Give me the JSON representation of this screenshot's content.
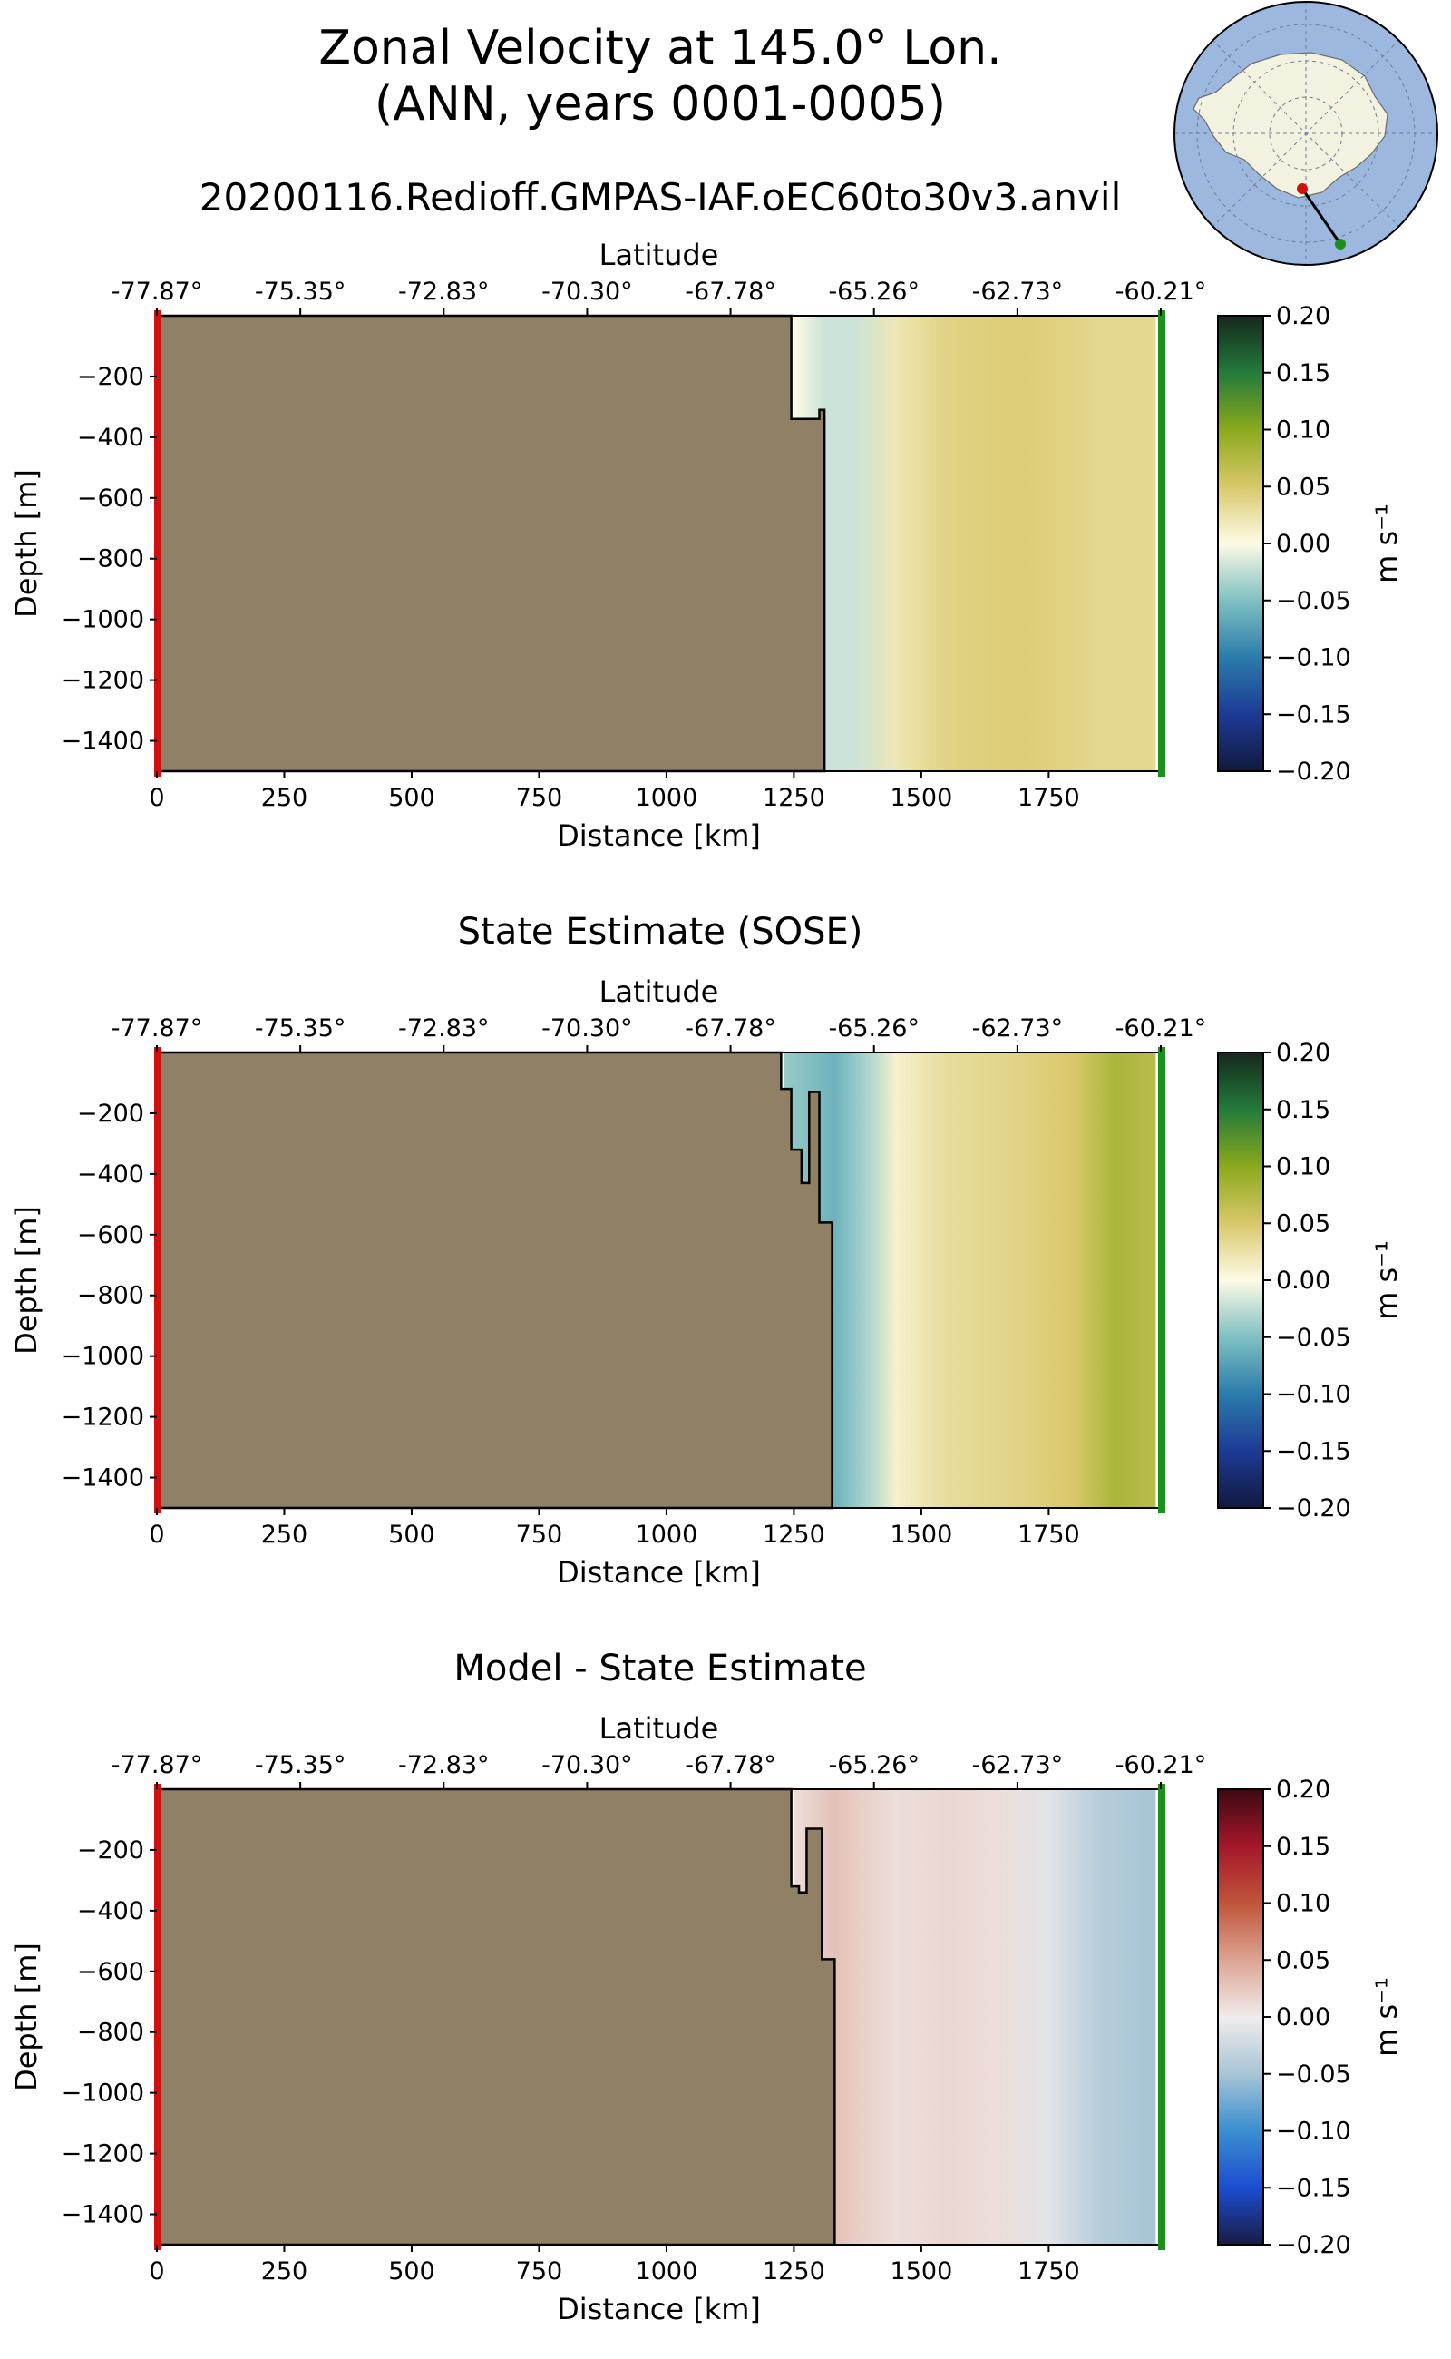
{
  "figure": {
    "title_line1": "Zonal Velocity at 145.0° Lon.",
    "title_line2": "(ANN, years 0001-0005)",
    "subtitle": "20200116.Redioff.GMPAS-IAF.oEC60to30v3.anvil",
    "inset_map": "antarctica-polar-stereographic",
    "colors": {
      "land": "#8f8066",
      "ocean_map": "#9db8df",
      "continent_map": "#f3f1df",
      "start_marker": "#d11010",
      "end_marker": "#1c8f1c"
    }
  },
  "chart_data": [
    {
      "type": "heatmap",
      "title": "",
      "xlabel": "Distance [km]",
      "ylabel": "Depth [m]",
      "top_axis_label": "Latitude",
      "top_ticks": [
        "-77.87°",
        "-75.35°",
        "-72.83°",
        "-70.30°",
        "-67.78°",
        "-65.26°",
        "-62.73°",
        "-60.21°"
      ],
      "x_ticks": [
        "0",
        "250",
        "500",
        "750",
        "1000",
        "1250",
        "1500",
        "1750"
      ],
      "y_ticks": [
        "−200",
        "−400",
        "−600",
        "−800",
        "−1000",
        "−1200",
        "−1400"
      ],
      "xlim": [
        0,
        1970
      ],
      "ylim": [
        -1500,
        0
      ],
      "colorbar": {
        "label": "m s⁻¹",
        "colormap": "delta",
        "ticks": [
          "0.20",
          "0.15",
          "0.10",
          "0.05",
          "0.00",
          "−0.05",
          "−0.10",
          "−0.15",
          "−0.20"
        ],
        "range": [
          -0.2,
          0.2
        ]
      },
      "bathymetry": [
        [
          1245,
          0
        ],
        [
          1245,
          -340
        ],
        [
          1300,
          -340
        ],
        [
          1300,
          -310
        ],
        [
          1310,
          -310
        ],
        [
          1310,
          -1500
        ]
      ],
      "velocity_profile": {
        "x": [
          1250,
          1310,
          1370,
          1450,
          1550,
          1700,
          1850,
          1960
        ],
        "v": [
          0.0,
          -0.02,
          -0.02,
          0.02,
          0.04,
          0.045,
          0.035,
          0.035
        ]
      }
    },
    {
      "type": "heatmap",
      "title": "State Estimate (SOSE)",
      "xlabel": "Distance [km]",
      "ylabel": "Depth [m]",
      "top_axis_label": "Latitude",
      "top_ticks": [
        "-77.87°",
        "-75.35°",
        "-72.83°",
        "-70.30°",
        "-67.78°",
        "-65.26°",
        "-62.73°",
        "-60.21°"
      ],
      "x_ticks": [
        "0",
        "250",
        "500",
        "750",
        "1000",
        "1250",
        "1500",
        "1750"
      ],
      "y_ticks": [
        "−200",
        "−400",
        "−600",
        "−800",
        "−1000",
        "−1200",
        "−1400"
      ],
      "xlim": [
        0,
        1970
      ],
      "ylim": [
        -1500,
        0
      ],
      "colorbar": {
        "label": "m s⁻¹",
        "colormap": "delta",
        "ticks": [
          "0.20",
          "0.15",
          "0.10",
          "0.05",
          "0.00",
          "−0.05",
          "−0.10",
          "−0.15",
          "−0.20"
        ],
        "range": [
          -0.2,
          0.2
        ]
      },
      "bathymetry": [
        [
          1225,
          0
        ],
        [
          1225,
          -120
        ],
        [
          1245,
          -120
        ],
        [
          1245,
          -320
        ],
        [
          1265,
          -320
        ],
        [
          1265,
          -430
        ],
        [
          1280,
          -430
        ],
        [
          1280,
          -130
        ],
        [
          1300,
          -130
        ],
        [
          1300,
          -560
        ],
        [
          1325,
          -560
        ],
        [
          1325,
          -1500
        ]
      ],
      "velocity_profile": {
        "x": [
          1230,
          1330,
          1400,
          1450,
          1550,
          1700,
          1800,
          1880,
          1960
        ],
        "v": [
          -0.04,
          -0.06,
          -0.03,
          0.01,
          0.03,
          0.04,
          0.05,
          0.08,
          0.07
        ]
      }
    },
    {
      "type": "heatmap",
      "title": "Model - State Estimate",
      "xlabel": "Distance [km]",
      "ylabel": "Depth [m]",
      "top_axis_label": "Latitude",
      "top_ticks": [
        "-77.87°",
        "-75.35°",
        "-72.83°",
        "-70.30°",
        "-67.78°",
        "-65.26°",
        "-62.73°",
        "-60.21°"
      ],
      "x_ticks": [
        "0",
        "250",
        "500",
        "750",
        "1000",
        "1250",
        "1500",
        "1750"
      ],
      "y_ticks": [
        "−200",
        "−400",
        "−600",
        "−800",
        "−1000",
        "−1200",
        "−1400"
      ],
      "xlim": [
        0,
        1970
      ],
      "ylim": [
        -1500,
        0
      ],
      "colorbar": {
        "label": "m s⁻¹",
        "colormap": "balance",
        "ticks": [
          "0.20",
          "0.15",
          "0.10",
          "0.05",
          "0.00",
          "−0.05",
          "−0.10",
          "−0.15",
          "−0.20"
        ],
        "range": [
          -0.2,
          0.2
        ]
      },
      "bathymetry": [
        [
          1245,
          0
        ],
        [
          1245,
          -320
        ],
        [
          1260,
          -320
        ],
        [
          1260,
          -340
        ],
        [
          1275,
          -340
        ],
        [
          1275,
          -130
        ],
        [
          1305,
          -130
        ],
        [
          1305,
          -560
        ],
        [
          1330,
          -560
        ],
        [
          1330,
          -1500
        ]
      ],
      "velocity_profile": {
        "x": [
          1250,
          1330,
          1380,
          1450,
          1550,
          1650,
          1750,
          1850,
          1960
        ],
        "v": [
          0.01,
          0.03,
          0.02,
          0.01,
          0.015,
          0.01,
          -0.01,
          -0.04,
          -0.05
        ]
      }
    }
  ]
}
